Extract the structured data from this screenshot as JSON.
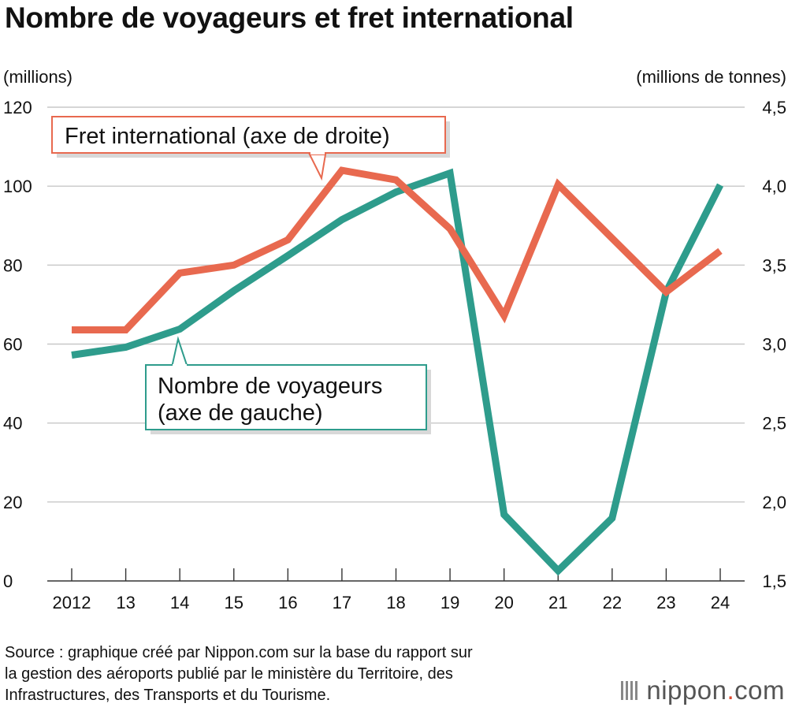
{
  "title": "Nombre de voyageurs et fret international",
  "source_lines": [
    "Source : graphique créé par Nippon.com sur la base du rapport sur",
    "la gestion des aéroports publié par le ministère du Territoire, des",
    "Infrastructures, des Transports et du Tourisme."
  ],
  "logo": {
    "name": "nippon",
    "dot": ".",
    "tld": "com"
  },
  "chart_data": {
    "type": "line",
    "title": "Nombre de voyageurs et fret international",
    "x_ticks": [
      "2012",
      "13",
      "14",
      "15",
      "16",
      "17",
      "18",
      "19",
      "20",
      "21",
      "22",
      "23",
      "24"
    ],
    "y_left": {
      "unit_label": "(millions)",
      "range": [
        0,
        120
      ],
      "ticks": [
        "0",
        "20",
        "40",
        "60",
        "80",
        "100",
        "120"
      ]
    },
    "y_right": {
      "unit_label": "(millions de tonnes)",
      "range": [
        1.5,
        4.5
      ],
      "ticks": [
        "1,5",
        "2,0",
        "2,5",
        "3,0",
        "3,5",
        "4,0",
        "4,5"
      ]
    },
    "grid": true,
    "series": [
      {
        "name": "Nombre de voyageurs",
        "label": [
          "Nombre de voyageurs",
          "(axe de gauche)"
        ],
        "axis": "left",
        "color": "#2e9c8c",
        "values": [
          57.2,
          59.2,
          63.8,
          73.5,
          82.4,
          91.5,
          98.5,
          103.3,
          16.8,
          2.6,
          15.9,
          73.2,
          100.3
        ]
      },
      {
        "name": "Fret international",
        "label": [
          "Fret international (axe de droite)"
        ],
        "axis": "right",
        "color": "#e8694f",
        "values": [
          3.09,
          3.09,
          3.45,
          3.5,
          3.66,
          4.1,
          4.04,
          3.73,
          3.18,
          4.01,
          3.67,
          3.33,
          3.59
        ]
      }
    ]
  }
}
